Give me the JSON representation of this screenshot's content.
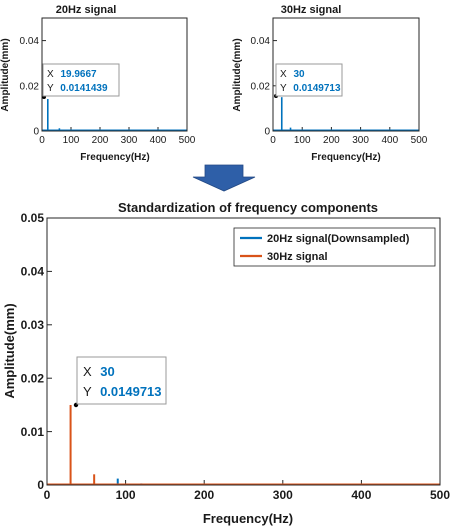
{
  "chart_data": [
    {
      "type": "line",
      "title": "20Hz signal",
      "xlabel": "Frequency(Hz)",
      "ylabel": "Amplitude(mm)",
      "xlim": [
        0,
        500
      ],
      "ylim": [
        0,
        0.05
      ],
      "xticks": [
        "0",
        "100",
        "200",
        "300",
        "400",
        "500"
      ],
      "yticks": [
        "0",
        "0.02",
        "0.04"
      ],
      "grid": false,
      "series": [
        {
          "color": "#0072bd",
          "spikes": [
            [
              19.9667,
              0.0141439
            ],
            [
              60,
              0.0012
            ]
          ]
        }
      ],
      "datatip": {
        "x_key": "X",
        "x_value": "19.9667",
        "y_key": "Y",
        "y_value": "0.0141439"
      }
    },
    {
      "type": "line",
      "title": "30Hz signal",
      "xlabel": "Frequency(Hz)",
      "ylabel": "Amplitude(mm)",
      "xlim": [
        0,
        500
      ],
      "ylim": [
        0,
        0.05
      ],
      "xticks": [
        "0",
        "100",
        "200",
        "300",
        "400",
        "500"
      ],
      "yticks": [
        "0",
        "0.02",
        "0.04"
      ],
      "grid": false,
      "series": [
        {
          "color": "#0072bd",
          "spikes": [
            [
              30,
              0.0149713
            ],
            [
              60,
              0.0015
            ]
          ]
        }
      ],
      "datatip": {
        "x_key": "X",
        "x_value": "30",
        "y_key": "Y",
        "y_value": "0.0149713"
      }
    },
    {
      "type": "line",
      "title": "Standardization of frequency components",
      "xlabel": "Frequency(Hz)",
      "ylabel": "Amplitude(mm)",
      "xlim": [
        0,
        500
      ],
      "ylim": [
        0,
        0.05
      ],
      "xticks": [
        "0",
        "100",
        "200",
        "300",
        "400",
        "500"
      ],
      "yticks": [
        "0",
        "0.01",
        "0.02",
        "0.03",
        "0.04",
        "0.05"
      ],
      "grid": false,
      "legend_position": "top-right",
      "series": [
        {
          "name": "20Hz signal(Downsampled)",
          "color": "#0072bd",
          "spikes": [
            [
              90,
              0.0012
            ],
            [
              120,
              0.0003
            ]
          ]
        },
        {
          "name": "30Hz signal",
          "color": "#d95319",
          "spikes": [
            [
              30,
              0.0149713
            ],
            [
              60,
              0.002
            ]
          ]
        }
      ],
      "datatip": {
        "x_key": "X",
        "x_value": "30",
        "y_key": "Y",
        "y_value": "0.0149713"
      }
    }
  ],
  "arrow": {
    "icon": "down-arrow-icon",
    "color": "#2e5fa8"
  }
}
